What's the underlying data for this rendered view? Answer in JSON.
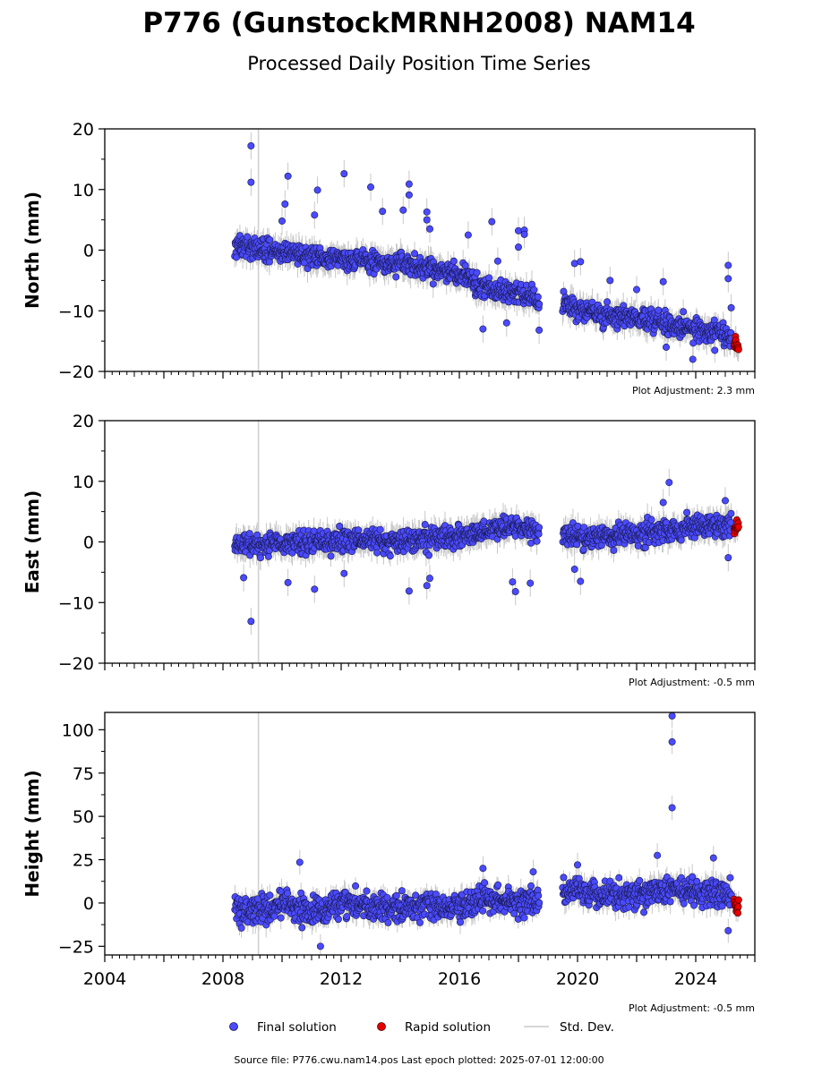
{
  "title": "P776 (GunstockMRNH2008) NAM14",
  "subtitle": "Processed Daily Position Time Series",
  "footer": "Source file: P776.cwu.nam14.pos  Last epoch plotted: 2025-07-01 12:00:00",
  "legend": {
    "final": "Final solution",
    "rapid": "Rapid solution",
    "std": "Std. Dev.",
    "placement": "bottom-center"
  },
  "colors": {
    "final": "#4a4aff",
    "rapid": "#e60000",
    "std": "#c8c8c8",
    "marker_edge": "#1a1a4d",
    "gap_line": "#d0d0d0"
  },
  "x_ticks": [
    "2004",
    "2008",
    "2012",
    "2016",
    "2020",
    "2024"
  ],
  "chart_data": [
    {
      "type": "scatter",
      "ylabel": "North (mm)",
      "ylim": [
        -20,
        20
      ],
      "y_ticks": [
        "20",
        "10",
        "0",
        "−10",
        "−20"
      ],
      "xlim": [
        2004.0,
        2026.0
      ],
      "adjustment": "Plot Adjustment: 2.3 mm",
      "vertical_line_x": 2009.2,
      "series": [
        {
          "name": "Final solution",
          "segments": [
            {
              "x": [
                2008.4,
                2009.0,
                2010.0,
                2011.0,
                2012.0,
                2013.0,
                2014.0,
                2015.0,
                2016.0,
                2016.5
              ],
              "y": [
                1.0,
                0.5,
                -0.5,
                -1.0,
                -1.5,
                -2.0,
                -2.5,
                -3.0,
                -4.0,
                -5.0
              ]
            },
            {
              "x": [
                2016.5,
                2017.0,
                2018.0,
                2018.7
              ],
              "y": [
                -6.0,
                -6.5,
                -7.0,
                -8.5
              ]
            },
            {
              "x": [
                2019.5,
                2020.0,
                2021.0,
                2022.0,
                2023.0,
                2024.0,
                2024.5,
                2025.2
              ],
              "y": [
                -8.5,
                -10.0,
                -10.5,
                -11.5,
                -12.0,
                -13.0,
                -13.5,
                -14.5
              ]
            }
          ]
        },
        {
          "name": "Rapid solution",
          "segments": [
            {
              "x": [
                2025.3,
                2025.45
              ],
              "y": [
                -15.0,
                -16.0
              ]
            }
          ]
        }
      ],
      "outliers": [
        {
          "x": 2008.95,
          "y": 17.2
        },
        {
          "x": 2008.95,
          "y": 11.2
        },
        {
          "x": 2010.2,
          "y": 12.2
        },
        {
          "x": 2010.1,
          "y": 7.6
        },
        {
          "x": 2010.0,
          "y": 4.8
        },
        {
          "x": 2011.2,
          "y": 9.9
        },
        {
          "x": 2011.1,
          "y": 5.8
        },
        {
          "x": 2012.1,
          "y": 12.6
        },
        {
          "x": 2013.0,
          "y": 10.4
        },
        {
          "x": 2013.4,
          "y": 6.4
        },
        {
          "x": 2014.1,
          "y": 6.6
        },
        {
          "x": 2014.3,
          "y": 10.9
        },
        {
          "x": 2014.3,
          "y": 9.1
        },
        {
          "x": 2014.9,
          "y": 6.3
        },
        {
          "x": 2014.9,
          "y": 5.0
        },
        {
          "x": 2015.0,
          "y": 3.5
        },
        {
          "x": 2016.3,
          "y": 2.5
        },
        {
          "x": 2016.8,
          "y": -13.0
        },
        {
          "x": 2017.1,
          "y": 4.7
        },
        {
          "x": 2017.3,
          "y": -1.8
        },
        {
          "x": 2017.6,
          "y": -12.0
        },
        {
          "x": 2018.0,
          "y": 0.5
        },
        {
          "x": 2018.0,
          "y": 3.2
        },
        {
          "x": 2018.2,
          "y": 3.3
        },
        {
          "x": 2018.2,
          "y": 2.6
        },
        {
          "x": 2018.7,
          "y": -13.2
        },
        {
          "x": 2019.9,
          "y": -2.2
        },
        {
          "x": 2020.1,
          "y": -1.9
        },
        {
          "x": 2021.1,
          "y": -5.0
        },
        {
          "x": 2022.0,
          "y": -6.5
        },
        {
          "x": 2022.9,
          "y": -5.2
        },
        {
          "x": 2023.0,
          "y": -16.0
        },
        {
          "x": 2023.9,
          "y": -18.0
        },
        {
          "x": 2025.1,
          "y": -2.5
        },
        {
          "x": 2025.1,
          "y": -4.7
        },
        {
          "x": 2025.2,
          "y": -9.5
        }
      ]
    },
    {
      "type": "scatter",
      "ylabel": "East (mm)",
      "ylim": [
        -20,
        20
      ],
      "y_ticks": [
        "20",
        "10",
        "0",
        "−10",
        "−20"
      ],
      "xlim": [
        2004.0,
        2026.0
      ],
      "adjustment": "Plot Adjustment: -0.5 mm",
      "vertical_line_x": 2009.2,
      "series": [
        {
          "name": "Final solution",
          "segments": [
            {
              "x": [
                2008.4,
                2009.0,
                2010.0,
                2011.0,
                2012.0,
                2013.0,
                2014.0,
                2015.0,
                2016.0,
                2017.0,
                2018.0,
                2018.7
              ],
              "y": [
                -0.8,
                -0.5,
                -0.3,
                -0.2,
                0.0,
                0.2,
                0.2,
                0.5,
                1.0,
                2.0,
                2.5,
                1.5
              ]
            },
            {
              "x": [
                2019.5,
                2020.0,
                2021.0,
                2022.0,
                2023.0,
                2024.0,
                2025.2
              ],
              "y": [
                1.0,
                0.8,
                1.0,
                1.3,
                1.8,
                2.5,
                3.0
              ]
            }
          ]
        },
        {
          "name": "Rapid solution",
          "segments": [
            {
              "x": [
                2025.3,
                2025.45
              ],
              "y": [
                2.0,
                3.0
              ]
            }
          ]
        }
      ],
      "outliers": [
        {
          "x": 2008.95,
          "y": -13.1
        },
        {
          "x": 2008.7,
          "y": -5.9
        },
        {
          "x": 2010.2,
          "y": -6.7
        },
        {
          "x": 2011.1,
          "y": -7.8
        },
        {
          "x": 2012.1,
          "y": -5.2
        },
        {
          "x": 2014.3,
          "y": -8.1
        },
        {
          "x": 2014.9,
          "y": -7.2
        },
        {
          "x": 2015.0,
          "y": -6.0
        },
        {
          "x": 2017.8,
          "y": -6.6
        },
        {
          "x": 2017.9,
          "y": -8.2
        },
        {
          "x": 2018.4,
          "y": -6.8
        },
        {
          "x": 2019.9,
          "y": -4.5
        },
        {
          "x": 2020.1,
          "y": -6.5
        },
        {
          "x": 2023.1,
          "y": 9.8
        },
        {
          "x": 2022.9,
          "y": 6.5
        },
        {
          "x": 2025.0,
          "y": 6.8
        },
        {
          "x": 2025.1,
          "y": -2.6
        }
      ]
    },
    {
      "type": "scatter",
      "ylabel": "Height (mm)",
      "ylim": [
        -30,
        110
      ],
      "y_ticks": [
        "100",
        "75",
        "50",
        "25",
        "0",
        "−25"
      ],
      "xlim": [
        2004.0,
        2026.0
      ],
      "adjustment": "Plot Adjustment: -0.5 mm",
      "vertical_line_x": 2009.2,
      "series": [
        {
          "name": "Final solution",
          "segments": [
            {
              "x": [
                2008.4,
                2009.0,
                2010.0,
                2011.0,
                2012.0,
                2013.0,
                2014.0,
                2015.0,
                2016.0,
                2017.0,
                2018.0,
                2018.7
              ],
              "y": [
                -5.0,
                -5.0,
                0.0,
                -5.0,
                0.0,
                -2.0,
                -3.0,
                -3.0,
                -2.0,
                3.0,
                0.0,
                2.0
              ]
            },
            {
              "x": [
                2019.5,
                2020.0,
                2021.0,
                2022.0,
                2023.0,
                2024.0,
                2025.2
              ],
              "y": [
                5.0,
                7.0,
                5.0,
                5.0,
                8.0,
                6.0,
                5.0
              ]
            }
          ]
        },
        {
          "name": "Rapid solution",
          "segments": [
            {
              "x": [
                2025.3,
                2025.45
              ],
              "y": [
                0.0,
                -2.0
              ]
            }
          ]
        }
      ],
      "outliers": [
        {
          "x": 2023.2,
          "y": 108.0
        },
        {
          "x": 2023.2,
          "y": 93.0
        },
        {
          "x": 2023.2,
          "y": 55.0
        },
        {
          "x": 2010.6,
          "y": 23.5
        },
        {
          "x": 2011.3,
          "y": -25.0
        },
        {
          "x": 2016.8,
          "y": 20.0
        },
        {
          "x": 2018.5,
          "y": 18.0
        },
        {
          "x": 2022.7,
          "y": 27.5
        },
        {
          "x": 2024.6,
          "y": 26.0
        },
        {
          "x": 2025.1,
          "y": -16.0
        },
        {
          "x": 2020.0,
          "y": 22.0
        }
      ]
    }
  ]
}
